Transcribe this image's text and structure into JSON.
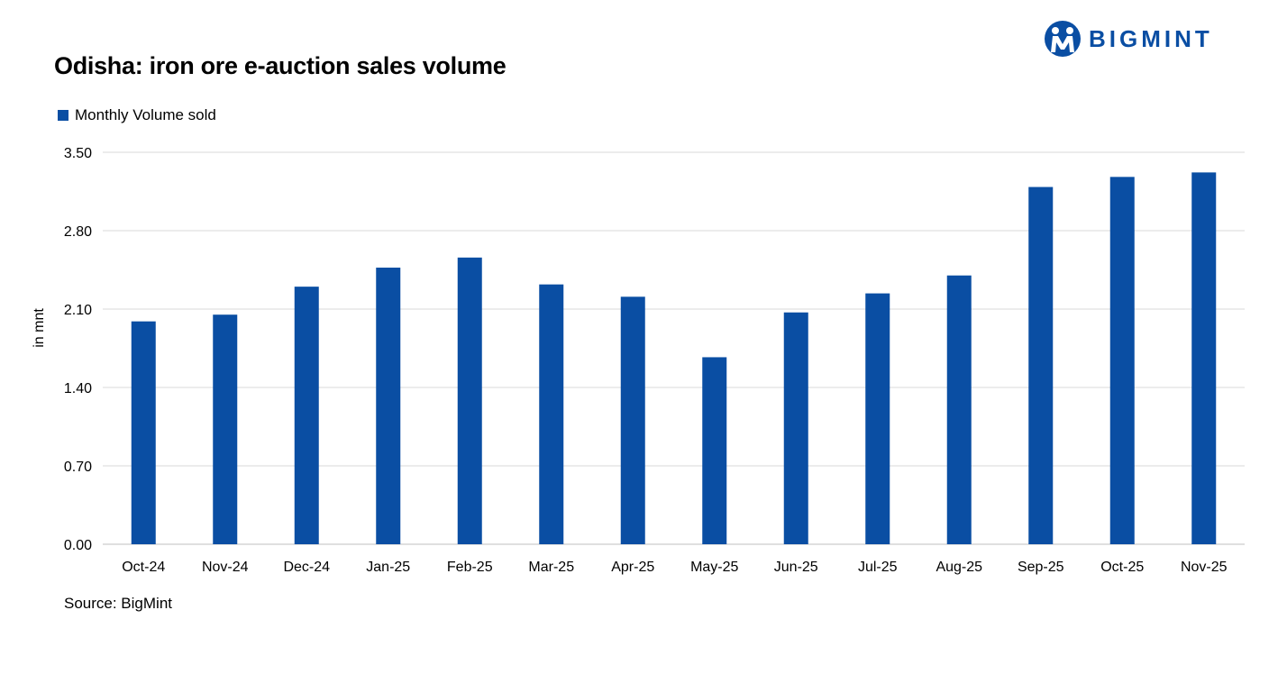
{
  "header": {
    "title": "Odisha: iron ore e-auction sales volume",
    "brand": "BIGMINT"
  },
  "footer": {
    "source": "Source: BigMint"
  },
  "chart_data": {
    "type": "bar",
    "title": "Odisha: iron ore e-auction sales volume",
    "xlabel": "",
    "ylabel": "in mnt",
    "ylim": [
      0,
      3.5
    ],
    "yticks": [
      "0.00",
      "0.70",
      "1.40",
      "2.10",
      "2.80",
      "3.50"
    ],
    "grid": true,
    "legend_position": "top-left",
    "categories": [
      "Oct-24",
      "Nov-24",
      "Dec-24",
      "Jan-25",
      "Feb-25",
      "Mar-25",
      "Apr-25",
      "May-25",
      "Jun-25",
      "Jul-25",
      "Aug-25",
      "Sep-25",
      "Oct-25",
      "Nov-25"
    ],
    "series": [
      {
        "name": "Monthly Volume sold",
        "color": "#0a4ea3",
        "values": [
          1.99,
          2.05,
          2.3,
          2.47,
          2.56,
          2.32,
          2.21,
          1.67,
          2.07,
          2.24,
          2.4,
          3.19,
          3.28,
          3.32
        ]
      }
    ]
  }
}
